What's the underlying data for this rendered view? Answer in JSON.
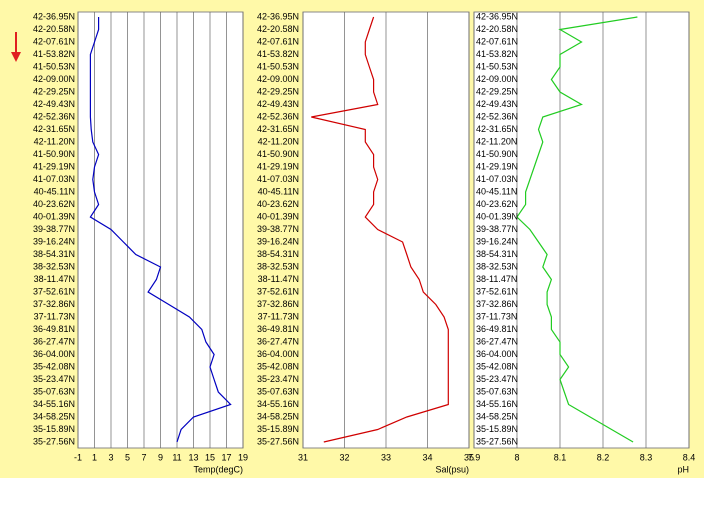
{
  "chart_data": [
    {
      "type": "line",
      "xlabel": "Temp(degC)",
      "color": "#0000c0",
      "categories": [
        "42-36.95N",
        "42-20.58N",
        "42-07.61N",
        "41-53.82N",
        "41-50.53N",
        "42-09.00N",
        "42-29.25N",
        "42-49.43N",
        "42-52.36N",
        "42-31.65N",
        "42-11.20N",
        "41-50.90N",
        "41-29.19N",
        "41-07.03N",
        "40-45.11N",
        "40-23.62N",
        "40-01.39N",
        "39-38.77N",
        "39-16.24N",
        "38-54.31N",
        "38-32.53N",
        "38-11.47N",
        "37-52.61N",
        "37-32.86N",
        "37-11.73N",
        "36-49.81N",
        "36-27.47N",
        "36-04.00N",
        "35-42.08N",
        "35-23.47N",
        "35-07.63N",
        "34-55.16N",
        "34-58.25N",
        "35-15.89N",
        "35-27.56N"
      ],
      "values": [
        1.5,
        1.5,
        1,
        0.5,
        0.5,
        0.5,
        0.5,
        0.5,
        0.5,
        0.6,
        0.8,
        1.5,
        1,
        0.8,
        1,
        1.5,
        0.5,
        3,
        4.5,
        6,
        9,
        8.5,
        7.5,
        10,
        12.5,
        14,
        14.5,
        15.5,
        15,
        15.5,
        16,
        17.5,
        13,
        11.5,
        11
      ],
      "xlim": [
        -1,
        19
      ],
      "xticks": [
        -1,
        1,
        3,
        5,
        7,
        9,
        11,
        13,
        15,
        17,
        19
      ],
      "grid": true
    },
    {
      "type": "line",
      "xlabel": "Sal(psu)",
      "color": "#d00000",
      "categories": [
        "42-36.95N",
        "42-20.58N",
        "42-07.61N",
        "41-53.82N",
        "41-50.53N",
        "42-09.00N",
        "42-29.25N",
        "42-49.43N",
        "42-52.36N",
        "42-31.65N",
        "42-11.20N",
        "41-50.90N",
        "41-29.19N",
        "41-07.03N",
        "40-45.11N",
        "40-23.62N",
        "40-01.39N",
        "39-38.77N",
        "39-16.24N",
        "38-54.31N",
        "38-32.53N",
        "38-11.47N",
        "37-52.61N",
        "37-32.86N",
        "37-11.73N",
        "36-49.81N",
        "36-27.47N",
        "36-04.00N",
        "35-42.08N",
        "35-23.47N",
        "35-07.63N",
        "34-55.16N",
        "34-58.25N",
        "35-15.89N",
        "35-27.56N"
      ],
      "values": [
        32.7,
        32.6,
        32.5,
        32.5,
        32.6,
        32.7,
        32.7,
        32.8,
        31.2,
        32.5,
        32.5,
        32.7,
        32.7,
        32.8,
        32.7,
        32.7,
        32.5,
        32.8,
        33.4,
        33.5,
        33.6,
        33.8,
        33.9,
        34.2,
        34.4,
        34.5,
        34.5,
        34.5,
        34.5,
        34.5,
        34.5,
        34.5,
        33.5,
        32.8,
        31.5
      ],
      "xlim": [
        31,
        35
      ],
      "xticks": [
        31,
        32,
        33,
        34,
        35
      ],
      "grid": true
    },
    {
      "type": "line",
      "xlabel": "pH",
      "color": "#22cc22",
      "categories": [
        "42-36.95N",
        "42-20.58N",
        "42-07.61N",
        "41-53.82N",
        "41-50.53N",
        "42-09.00N",
        "42-29.25N",
        "42-49.43N",
        "42-52.36N",
        "42-31.65N",
        "42-11.20N",
        "41-50.90N",
        "41-29.19N",
        "41-07.03N",
        "40-45.11N",
        "40-23.62N",
        "40-01.39N",
        "39-38.77N",
        "39-16.24N",
        "38-54.31N",
        "38-32.53N",
        "38-11.47N",
        "37-52.61N",
        "37-32.86N",
        "37-11.73N",
        "36-49.81N",
        "36-27.47N",
        "36-04.00N",
        "35-42.08N",
        "35-23.47N",
        "35-07.63N",
        "34-55.16N",
        "34-58.25N",
        "35-15.89N",
        "35-27.56N"
      ],
      "values": [
        8.28,
        8.1,
        8.15,
        8.1,
        8.1,
        8.08,
        8.1,
        8.15,
        8.06,
        8.05,
        8.06,
        8.05,
        8.04,
        8.03,
        8.02,
        8.02,
        8.0,
        8.03,
        8.05,
        8.07,
        8.06,
        8.08,
        8.07,
        8.07,
        8.08,
        8.08,
        8.1,
        8.1,
        8.12,
        8.1,
        8.11,
        8.12,
        8.17,
        8.22,
        8.27
      ],
      "xlim": [
        7.9,
        8.4
      ],
      "xticks": [
        7.9,
        8,
        8.1,
        8.2,
        8.3,
        8.4
      ],
      "grid": true
    }
  ]
}
